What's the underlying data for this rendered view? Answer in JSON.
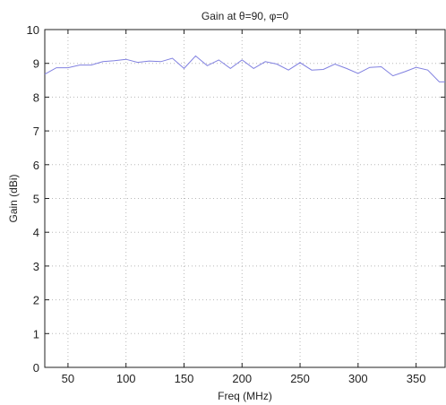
{
  "chart_data": {
    "type": "line",
    "title": "Gain at θ=90, φ=0",
    "xlabel": "Freq (MHz)",
    "ylabel": "Gain (dBi)",
    "xlim": [
      30,
      375
    ],
    "ylim": [
      0,
      10
    ],
    "xticks": [
      50,
      100,
      150,
      200,
      250,
      300,
      350
    ],
    "yticks": [
      0,
      1,
      2,
      3,
      4,
      5,
      6,
      7,
      8,
      9,
      10
    ],
    "grid": true,
    "series": [
      {
        "color": "#8080e0",
        "x": [
          30,
          40,
          50,
          60,
          70,
          80,
          90,
          100,
          110,
          120,
          130,
          140,
          150,
          160,
          170,
          180,
          190,
          200,
          210,
          220,
          230,
          240,
          250,
          260,
          270,
          280,
          290,
          300,
          310,
          320,
          330,
          340,
          350,
          360,
          370,
          375
        ],
        "y": [
          8.68,
          8.87,
          8.87,
          8.95,
          8.95,
          9.05,
          9.08,
          9.12,
          9.03,
          9.07,
          9.05,
          9.15,
          8.85,
          9.22,
          8.93,
          9.1,
          8.85,
          9.1,
          8.85,
          9.05,
          8.98,
          8.8,
          9.02,
          8.8,
          8.82,
          8.98,
          8.85,
          8.7,
          8.88,
          8.9,
          8.63,
          8.75,
          8.88,
          8.8,
          8.45,
          8.45
        ]
      }
    ]
  }
}
